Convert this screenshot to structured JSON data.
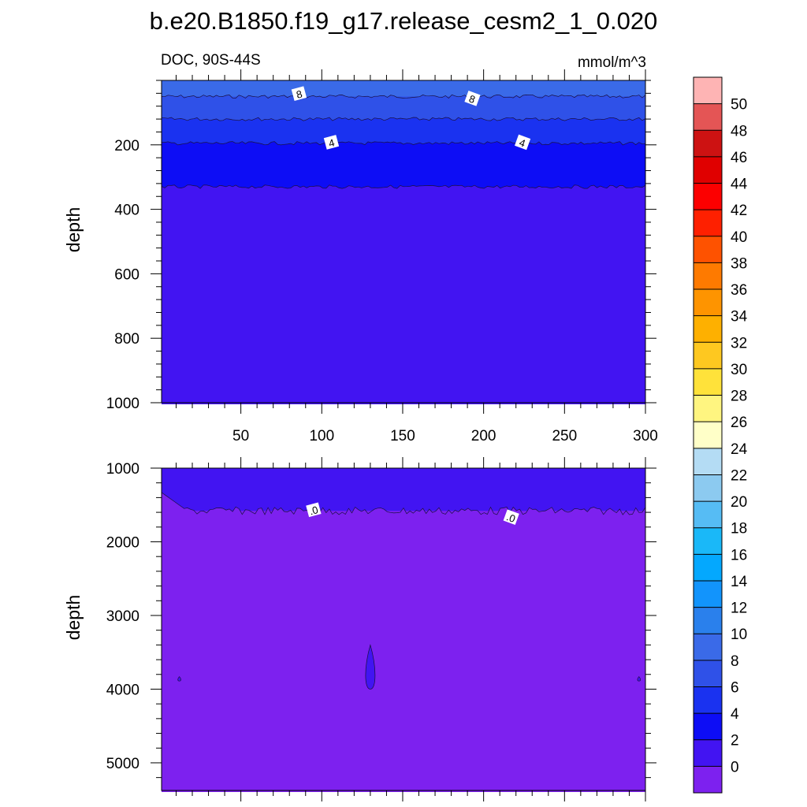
{
  "figure": {
    "title": "b.e20.B1850.f19_g17.release_cesm2_1_0.020"
  },
  "chart_data": [
    {
      "type": "contour",
      "left_title": "DOC, 90S-44S",
      "right_title": "mmol/m^3",
      "xlabel": "",
      "ylabel": "depth",
      "xlim": [
        1,
        300
      ],
      "ylim": [
        1000,
        0
      ],
      "x_ticks": [
        50,
        100,
        150,
        200,
        250,
        300
      ],
      "y_ticks": [
        200,
        400,
        600,
        800,
        1000
      ],
      "bands": [
        {
          "range": [
            8,
            10
          ],
          "color": "#3a6ae8",
          "depth_top": 0,
          "depth_bottom": 50
        },
        {
          "range": [
            6,
            8
          ],
          "color": "#2f51e8",
          "depth_top": 50,
          "depth_bottom": 120
        },
        {
          "range": [
            4,
            6
          ],
          "color": "#1a32f0",
          "depth_top": 120,
          "depth_bottom": 195
        },
        {
          "range": [
            2,
            4
          ],
          "color": "#0d0df5",
          "depth_top": 195,
          "depth_bottom": 330
        },
        {
          "range": [
            0,
            2
          ],
          "color": "#4214f2",
          "depth_top": 330,
          "depth_bottom": 1000
        }
      ],
      "contour_labels": [
        {
          "text": "8",
          "x": 86,
          "depth": 42
        },
        {
          "text": "8",
          "x": 193,
          "depth": 57
        },
        {
          "text": "4",
          "x": 106,
          "depth": 193
        },
        {
          "text": "4",
          "x": 224,
          "depth": 193
        }
      ]
    },
    {
      "type": "contour",
      "xlabel": "",
      "ylabel": "depth",
      "xlim": [
        1,
        300
      ],
      "ylim": [
        5375,
        1000
      ],
      "x_ticks": [
        50,
        100,
        150,
        200,
        250,
        300
      ],
      "y_ticks": [
        1000,
        2000,
        3000,
        4000,
        5000
      ],
      "bands": [
        {
          "range": [
            0,
            2
          ],
          "color": "#4214f2",
          "depth_top": 1000,
          "depth_bottom": 1580
        },
        {
          "range": [
            "<0",
            0
          ],
          "color": "#7d21ef",
          "depth_top": 1580,
          "depth_bottom": 5375
        }
      ],
      "features": [
        {
          "range": [
            0,
            2
          ],
          "x": 130,
          "depth_top": 3400,
          "depth_bottom": 4000
        },
        {
          "range": [
            0,
            2
          ],
          "x": 12,
          "depth_top": 3830,
          "depth_bottom": 3890
        },
        {
          "range": [
            0,
            2
          ],
          "x": 296,
          "depth_top": 3830,
          "depth_bottom": 3890
        }
      ],
      "contour_labels": [
        {
          "text": ".0",
          "x": 95,
          "depth": 1570
        },
        {
          "text": ".0",
          "x": 217,
          "depth": 1670
        }
      ]
    }
  ],
  "colorbar": {
    "tick_labels": [
      "50",
      "48",
      "46",
      "44",
      "42",
      "40",
      "38",
      "36",
      "34",
      "32",
      "30",
      "28",
      "26",
      "24",
      "22",
      "20",
      "18",
      "16",
      "14",
      "12",
      "10",
      "8",
      "6",
      "4",
      "2",
      "0"
    ],
    "colors": [
      "#feb4b4",
      "#e45555",
      "#cd1212",
      "#e00000",
      "#fc0000",
      "#fe2000",
      "#fe5200",
      "#fe7a00",
      "#fe9400",
      "#feb000",
      "#fec820",
      "#ffe23a",
      "#fff580",
      "#ffffc8",
      "#b4dcf4",
      "#8ccaf0",
      "#56bcf4",
      "#1ab8f8",
      "#04a8fe",
      "#1294fc",
      "#2a80ec",
      "#3a6ae8",
      "#2f51e8",
      "#1a32f0",
      "#0d0df5",
      "#4214f2",
      "#7d21ef"
    ]
  }
}
